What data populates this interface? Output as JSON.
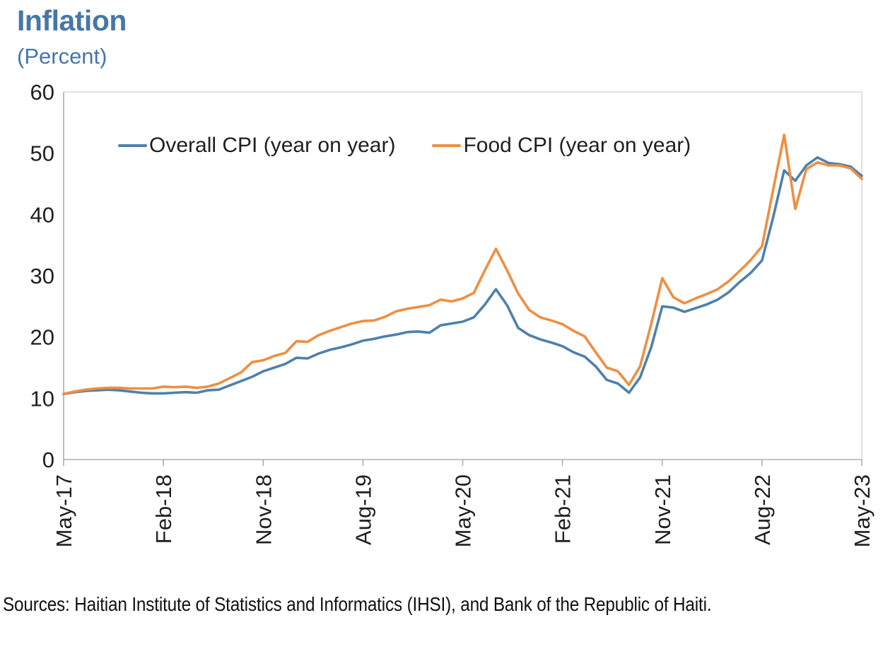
{
  "title": "Inflation",
  "subtitle": "(Percent)",
  "source": "Sources: Haitian Institute of Statistics and Informatics (IHSI), and Bank of the Republic of Haiti.",
  "colors": {
    "title_blue": "#4677A6",
    "overall_line": "#4E81AC",
    "food_line": "#EF8E42",
    "axis_line": "#ADADAD",
    "plot_border": "#D9D9D9",
    "label_text": "#1F1F1F"
  },
  "chart_data": {
    "type": "line",
    "title": "Inflation",
    "ylabel": "Percent",
    "ylim": [
      0,
      60
    ],
    "yticks": [
      0,
      10,
      20,
      30,
      40,
      50,
      60
    ],
    "grid": false,
    "legend_position": "top-inside",
    "xtick_indices": [
      0,
      9,
      18,
      27,
      36,
      45,
      54,
      63,
      72
    ],
    "xtick_labels": [
      "May-17",
      "Feb-18",
      "Nov-18",
      "Aug-19",
      "May-20",
      "Feb-21",
      "Nov-21",
      "Aug-22",
      "May-23"
    ],
    "x": [
      "May-17",
      "Jun-17",
      "Jul-17",
      "Aug-17",
      "Sep-17",
      "Oct-17",
      "Nov-17",
      "Dec-17",
      "Jan-18",
      "Feb-18",
      "Mar-18",
      "Apr-18",
      "May-18",
      "Jun-18",
      "Jul-18",
      "Aug-18",
      "Sep-18",
      "Oct-18",
      "Nov-18",
      "Dec-18",
      "Jan-19",
      "Feb-19",
      "Mar-19",
      "Apr-19",
      "May-19",
      "Jun-19",
      "Jul-19",
      "Aug-19",
      "Sep-19",
      "Oct-19",
      "Nov-19",
      "Dec-19",
      "Jan-20",
      "Feb-20",
      "Mar-20",
      "Apr-20",
      "May-20",
      "Jun-20",
      "Jul-20",
      "Aug-20",
      "Sep-20",
      "Oct-20",
      "Nov-20",
      "Dec-20",
      "Jan-21",
      "Feb-21",
      "Mar-21",
      "Apr-21",
      "May-21",
      "Jun-21",
      "Jul-21",
      "Aug-21",
      "Sep-21",
      "Oct-21",
      "Nov-21",
      "Dec-21",
      "Jan-22",
      "Feb-22",
      "Mar-22",
      "Apr-22",
      "May-22",
      "Jun-22",
      "Jul-22",
      "Aug-22",
      "Sep-22",
      "Oct-22",
      "Nov-22",
      "Dec-22",
      "Jan-23",
      "Feb-23",
      "Mar-23",
      "Apr-23",
      "May-23"
    ],
    "series": [
      {
        "name": "Overall CPI (year on year)",
        "color": "#4E81AC",
        "values": [
          10.7,
          11.0,
          11.2,
          11.3,
          11.4,
          11.3,
          11.1,
          10.9,
          10.8,
          10.8,
          10.9,
          11.0,
          10.9,
          11.3,
          11.4,
          12.1,
          12.8,
          13.5,
          14.4,
          15.0,
          15.6,
          16.6,
          16.5,
          17.3,
          17.9,
          18.3,
          18.8,
          19.4,
          19.7,
          20.1,
          20.4,
          20.8,
          20.9,
          20.7,
          21.9,
          22.2,
          22.5,
          23.2,
          25.3,
          27.8,
          25.2,
          21.5,
          20.3,
          19.6,
          19.1,
          18.5,
          17.5,
          16.8,
          15.2,
          13.0,
          12.4,
          10.9,
          13.4,
          18.3,
          25.0,
          24.8,
          24.1,
          24.7,
          25.3,
          26.1,
          27.3,
          29.0,
          30.5,
          32.5,
          39.5,
          47.2,
          45.5,
          48.0,
          49.3,
          48.4,
          48.2,
          47.8,
          46.3
        ]
      },
      {
        "name": "Food CPI (year on year)",
        "color": "#EF8E42",
        "values": [
          10.7,
          11.1,
          11.4,
          11.6,
          11.7,
          11.7,
          11.6,
          11.6,
          11.6,
          11.9,
          11.8,
          11.9,
          11.7,
          11.9,
          12.4,
          13.3,
          14.2,
          15.9,
          16.2,
          16.9,
          17.4,
          19.3,
          19.2,
          20.3,
          21.0,
          21.6,
          22.2,
          22.6,
          22.7,
          23.3,
          24.2,
          24.6,
          24.9,
          25.2,
          26.1,
          25.8,
          26.3,
          27.2,
          30.9,
          34.4,
          30.9,
          27.1,
          24.4,
          23.2,
          22.7,
          22.1,
          21.0,
          20.1,
          17.5,
          15.0,
          14.4,
          12.2,
          15.2,
          22.1,
          29.6,
          26.5,
          25.5,
          26.3,
          27.0,
          27.8,
          29.1,
          30.8,
          32.6,
          34.8,
          44.0,
          53.0,
          40.9,
          47.4,
          48.5,
          48.0,
          48.0,
          47.5,
          45.8
        ]
      }
    ]
  }
}
